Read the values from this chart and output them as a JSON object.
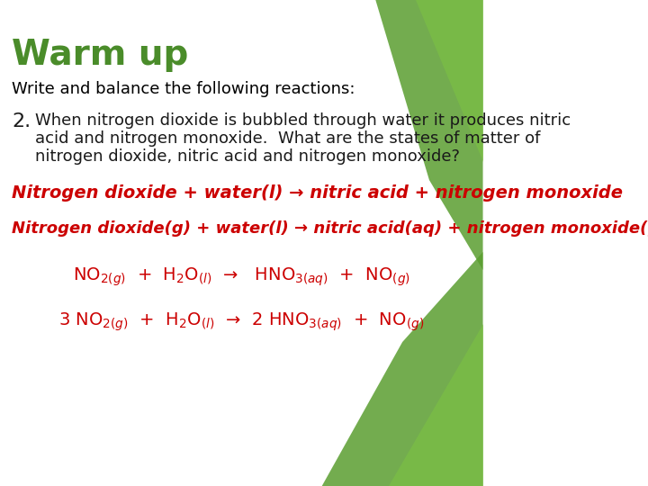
{
  "title": "Warm up",
  "title_color": "#4a8c2a",
  "subtitle": "Write and balance the following reactions:",
  "subtitle_color": "#000000",
  "background_color": "#ffffff",
  "green_color": "#4a8c2a",
  "red_color": "#cc0000",
  "dark_red": "#8b0000",
  "body_color": "#1a1a1a",
  "item_number": "2.",
  "item_text_line1": "When nitrogen dioxide is bubbled through water it produces nitric",
  "item_text_line2": "acid and nitrogen monoxide.  What are the states of matter of",
  "item_text_line3": "nitrogen dioxide, nitric acid and nitrogen monoxide?",
  "line1": "Nitrogen dioxide + water(l) → nitric acid + nitrogen monoxide",
  "line2_parts": [
    {
      "text": "Nitrogen dioxide",
      "style": "bold",
      "color": "#cc0000"
    },
    {
      "text": "(g) + water(l) → nitric acid",
      "style": "normal",
      "color": "#cc0000"
    },
    {
      "text": "(aq) + nitrogen monoxide",
      "style": "bold",
      "color": "#cc0000"
    },
    {
      "text": "(g)",
      "style": "normal",
      "color": "#cc0000"
    }
  ],
  "eq1_parts": "NO₂₍ᴳ₎ + H₂O₍ℓ₎ →  HNO₃₍ᵃᵠ₎ + NO₍ᴳ₎",
  "eq2_parts": "3 NO₂₍ᴳ₎ + H₂O₍ℓ₎ → 2  HNO₃₍ᵃᵠ₎ + NO₍ᴳ₎",
  "figsize": [
    7.2,
    5.4
  ],
  "dpi": 100
}
